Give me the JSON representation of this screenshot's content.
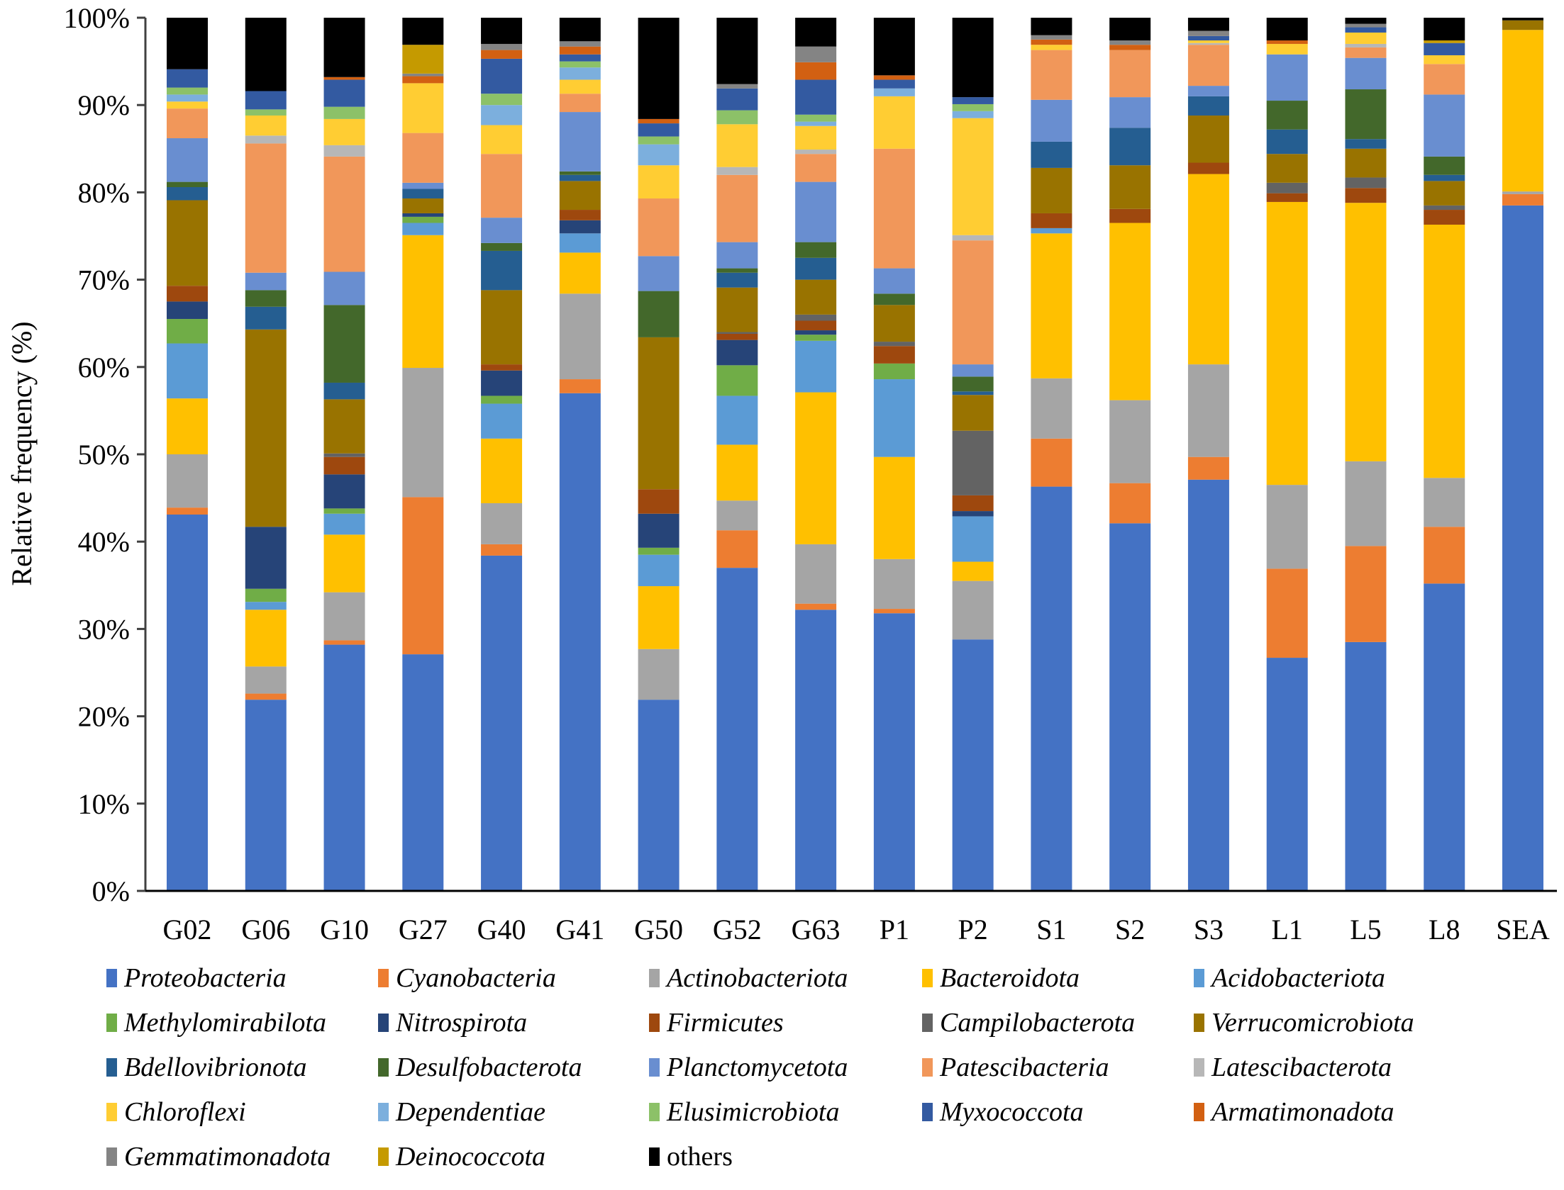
{
  "chart_data": {
    "type": "bar",
    "stacked": true,
    "normalized": true,
    "title": "",
    "xlabel": "",
    "ylabel": "Relative frequency (%)",
    "ylim": [
      0,
      100
    ],
    "yticks": [
      "0%",
      "10%",
      "20%",
      "30%",
      "40%",
      "50%",
      "60%",
      "70%",
      "80%",
      "90%",
      "100%"
    ],
    "grid": false,
    "legend_position": "bottom",
    "categories": [
      "G02",
      "G06",
      "G10",
      "G27",
      "G40",
      "G41",
      "G50",
      "G52",
      "G63",
      "P1",
      "P2",
      "S1",
      "S2",
      "S3",
      "L1",
      "L5",
      "L8",
      "SEA"
    ],
    "series": [
      {
        "name": "Proteobacteria",
        "italic": true,
        "color": "#4472C4",
        "values": [
          43.1,
          21.9,
          28.2,
          27.1,
          38.4,
          57.0,
          21.9,
          37.0,
          32.2,
          31.8,
          28.8,
          46.3,
          42.1,
          47.1,
          26.7,
          28.5,
          35.2,
          78.5
        ]
      },
      {
        "name": "Cyanobacteria",
        "italic": true,
        "color": "#ED7D31",
        "values": [
          0.8,
          0.7,
          0.5,
          18.0,
          1.3,
          1.6,
          0.0,
          4.3,
          0.7,
          0.5,
          0.0,
          5.5,
          4.6,
          2.6,
          10.2,
          11.0,
          6.5,
          1.3
        ]
      },
      {
        "name": "Actinobacteriota",
        "italic": true,
        "color": "#A5A5A5",
        "values": [
          6.1,
          3.1,
          5.5,
          14.8,
          4.7,
          9.8,
          5.8,
          3.4,
          6.8,
          5.7,
          6.7,
          6.9,
          9.5,
          10.6,
          9.6,
          9.7,
          5.6,
          0.3
        ]
      },
      {
        "name": "Bacteroidota",
        "italic": true,
        "color": "#FFC000",
        "values": [
          6.4,
          6.5,
          6.6,
          15.2,
          7.4,
          4.7,
          7.2,
          6.4,
          17.4,
          11.7,
          2.2,
          16.6,
          20.3,
          21.8,
          32.4,
          29.6,
          29.0,
          18.5
        ]
      },
      {
        "name": "Acidobacteriota",
        "italic": true,
        "color": "#5B9BD5",
        "values": [
          6.3,
          0.9,
          2.4,
          1.4,
          4.0,
          2.2,
          3.6,
          5.6,
          5.9,
          8.9,
          5.2,
          0.6,
          0.0,
          0.0,
          0.0,
          0.0,
          0.0,
          0.0
        ]
      },
      {
        "name": "Methylomirabilota",
        "italic": true,
        "color": "#70AD47",
        "values": [
          2.8,
          1.5,
          0.6,
          0.7,
          0.9,
          0.0,
          0.8,
          3.5,
          0.7,
          1.8,
          0.0,
          0.0,
          0.0,
          0.0,
          0.0,
          0.0,
          0.0,
          0.0
        ]
      },
      {
        "name": "Nitrospirota",
        "italic": true,
        "color": "#264478",
        "values": [
          2.0,
          7.1,
          3.9,
          0.4,
          2.9,
          1.5,
          3.9,
          2.9,
          0.5,
          0.0,
          0.6,
          0.0,
          0.0,
          0.0,
          0.0,
          0.0,
          0.0,
          0.0
        ]
      },
      {
        "name": "Firmicutes",
        "italic": true,
        "color": "#9E480E",
        "values": [
          1.8,
          0.0,
          2.0,
          0.0,
          0.7,
          1.2,
          2.8,
          0.7,
          1.1,
          2.0,
          1.8,
          1.7,
          1.6,
          1.3,
          1.0,
          1.7,
          1.7,
          0.0
        ]
      },
      {
        "name": "Campilobacterota",
        "italic": true,
        "color": "#636363",
        "values": [
          0.0,
          0.0,
          0.4,
          0.0,
          0.0,
          0.0,
          0.0,
          0.2,
          0.7,
          0.5,
          7.4,
          0.0,
          0.0,
          0.0,
          1.2,
          1.2,
          0.5,
          0.0
        ]
      },
      {
        "name": "Verrucomicrobiota",
        "italic": true,
        "color": "#997300",
        "values": [
          9.8,
          22.6,
          6.2,
          1.7,
          8.5,
          3.3,
          17.4,
          5.1,
          4.0,
          4.2,
          4.1,
          5.2,
          5.0,
          5.4,
          3.3,
          3.3,
          2.8,
          1.1
        ]
      },
      {
        "name": "Bdellovibrionota",
        "italic": true,
        "color": "#255E91",
        "values": [
          1.5,
          2.6,
          1.9,
          1.1,
          4.5,
          0.7,
          0.0,
          1.7,
          2.5,
          0.0,
          0.4,
          3.0,
          4.3,
          2.2,
          2.8,
          1.1,
          0.7,
          0.0
        ]
      },
      {
        "name": "Desulfobacterota",
        "italic": true,
        "color": "#43682B",
        "values": [
          0.6,
          1.9,
          8.9,
          0.0,
          0.9,
          0.4,
          5.3,
          0.5,
          1.8,
          1.3,
          1.7,
          0.0,
          0.0,
          0.0,
          3.3,
          5.7,
          2.1,
          0.0
        ]
      },
      {
        "name": "Planctomycetota",
        "italic": true,
        "color": "#698ED0",
        "values": [
          5.0,
          2.0,
          3.8,
          0.7,
          2.9,
          6.8,
          4.0,
          3.0,
          6.9,
          2.9,
          1.4,
          4.8,
          3.5,
          1.2,
          5.3,
          3.6,
          7.1,
          0.0
        ]
      },
      {
        "name": "Patescibacteria",
        "italic": true,
        "color": "#F1975A",
        "values": [
          3.4,
          14.8,
          13.2,
          5.7,
          7.3,
          2.1,
          6.6,
          7.7,
          3.2,
          13.7,
          14.2,
          5.7,
          5.4,
          4.7,
          0.0,
          1.2,
          3.5,
          0.0
        ]
      },
      {
        "name": "Latescibacterota",
        "italic": true,
        "color": "#B7B7B7",
        "values": [
          0.0,
          0.9,
          1.3,
          0.0,
          0.0,
          0.0,
          0.0,
          0.9,
          0.5,
          0.0,
          0.6,
          0.0,
          0.0,
          0.2,
          0.0,
          0.4,
          0.0,
          0.0
        ]
      },
      {
        "name": "Chloroflexi",
        "italic": true,
        "color": "#FFCD33",
        "values": [
          0.8,
          2.3,
          3.0,
          5.7,
          3.3,
          1.6,
          3.8,
          4.9,
          2.7,
          6.0,
          13.4,
          0.6,
          0.0,
          0.3,
          1.2,
          1.3,
          1.0,
          0.0
        ]
      },
      {
        "name": "Dependentiae",
        "italic": true,
        "color": "#7CAFDD",
        "values": [
          0.8,
          0.0,
          0.0,
          0.0,
          2.3,
          1.4,
          2.4,
          0.0,
          0.5,
          0.9,
          0.8,
          0.0,
          0.0,
          0.0,
          0.0,
          0.0,
          0.0,
          0.0
        ]
      },
      {
        "name": "Elusimicrobiota",
        "italic": true,
        "color": "#8CC168",
        "values": [
          0.8,
          0.7,
          1.4,
          0.0,
          1.3,
          0.7,
          0.9,
          1.6,
          0.8,
          0.0,
          0.8,
          0.0,
          0.0,
          0.0,
          0.0,
          0.0,
          0.0,
          0.0
        ]
      },
      {
        "name": "Myxococcota",
        "italic": true,
        "color": "#335AA1",
        "values": [
          2.1,
          2.1,
          3.1,
          0.0,
          4.0,
          0.8,
          1.5,
          2.5,
          4.0,
          1.0,
          0.8,
          0.0,
          0.0,
          0.5,
          0.0,
          0.6,
          1.4,
          0.0
        ]
      },
      {
        "name": "Armatimonadota",
        "italic": true,
        "color": "#D26012",
        "values": [
          0.0,
          0.0,
          0.3,
          0.8,
          1.0,
          0.9,
          0.5,
          0.0,
          2.0,
          0.5,
          0.0,
          0.6,
          0.6,
          0.0,
          0.4,
          0.0,
          0.0,
          0.0
        ]
      },
      {
        "name": "Gemmatimonadota",
        "italic": true,
        "color": "#848484",
        "values": [
          0.0,
          0.0,
          0.0,
          0.3,
          0.7,
          0.6,
          0.0,
          0.5,
          1.8,
          0.0,
          0.0,
          0.5,
          0.5,
          0.6,
          0.0,
          0.4,
          0.0,
          0.0
        ]
      },
      {
        "name": "Deinococcota",
        "italic": true,
        "color": "#C59A00",
        "values": [
          0.0,
          0.0,
          0.0,
          3.3,
          0.0,
          0.0,
          0.0,
          0.0,
          0.0,
          0.0,
          0.0,
          0.0,
          0.0,
          0.0,
          0.0,
          0.0,
          0.3,
          0.0
        ]
      },
      {
        "name": "others",
        "italic": false,
        "color": "#000000",
        "values": [
          5.9,
          8.4,
          6.8,
          3.1,
          3.0,
          2.7,
          11.6,
          7.6,
          3.3,
          6.6,
          9.1,
          2.0,
          2.6,
          1.5,
          2.6,
          0.7,
          2.6,
          0.3
        ]
      }
    ]
  }
}
